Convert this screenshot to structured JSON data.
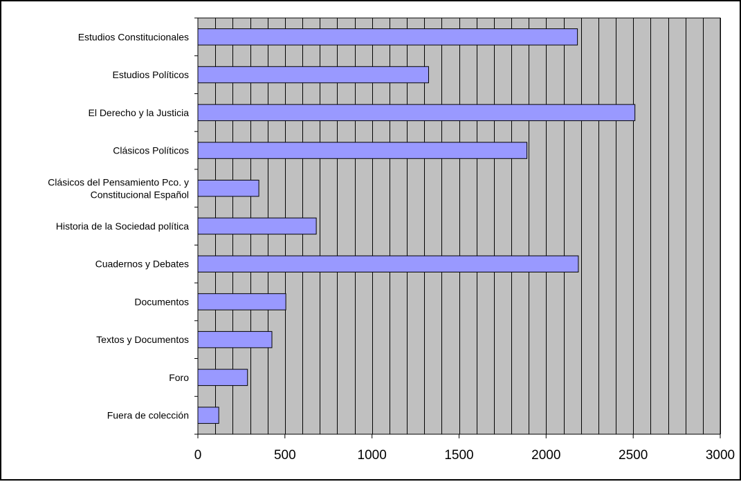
{
  "chart_data": {
    "type": "bar",
    "orientation": "horizontal",
    "categories": [
      [
        "Estudios Constitucionales"
      ],
      [
        "Estudios Políticos"
      ],
      [
        "El Derecho y la Justicia"
      ],
      [
        "Clásicos Políticos"
      ],
      [
        "Clásicos del Pensamiento Pco. y",
        "Constitucional Español"
      ],
      [
        "Historia de la Sociedad política"
      ],
      [
        "Cuadernos y Debates"
      ],
      [
        "Documentos"
      ],
      [
        "Textos y Documentos"
      ],
      [
        "Foro"
      ],
      [
        "Fuera de colección"
      ]
    ],
    "values": [
      2180,
      1325,
      2510,
      1890,
      350,
      680,
      2185,
      505,
      425,
      285,
      120
    ],
    "x_ticks": [
      "0",
      "500",
      "1000",
      "1500",
      "2000",
      "2500",
      "3000"
    ],
    "xlim": [
      0,
      3000
    ],
    "minor_grid_step": 100,
    "grid": true,
    "legend": "none",
    "title": "",
    "xlabel": "",
    "ylabel": "",
    "colors": {
      "bar_fill": "#9999ff",
      "bar_stroke": "#000000",
      "plot_background": "#c0c0c0",
      "grid_line": "#000000",
      "frame": "#000000"
    }
  }
}
